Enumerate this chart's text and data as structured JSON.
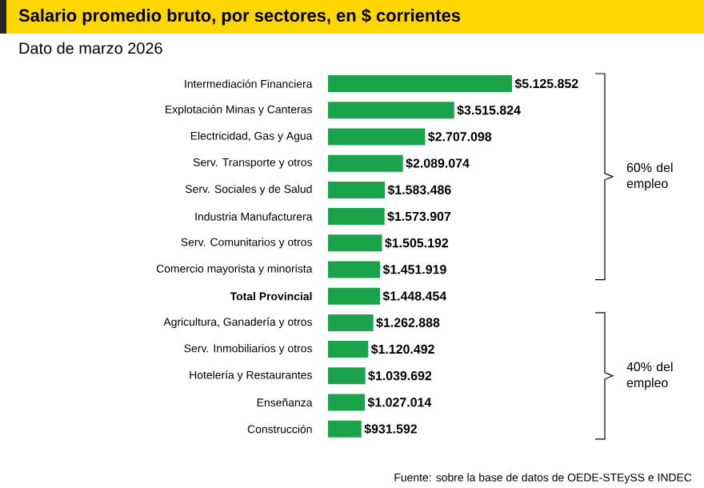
{
  "chart_data": {
    "type": "bar",
    "orientation": "horizontal",
    "title": "Salario promedio bruto, por sectores, en $ corrientes",
    "subtitle": "Dato de marzo 2026",
    "categories": [
      "Intermediación Financiera",
      "Explotación Minas y Canteras",
      "Electricidad, Gas y Agua",
      "Serv. Transporte y otros",
      "Serv. Sociales y de Salud",
      "Industria Manufacturera",
      "Serv. Comunitarios y otros",
      "Comercio mayorista y minorista",
      "**Total Provincial**",
      "Agricultura, Ganadería y otros",
      "Serv. Inmobiliarios y otros",
      "Hotelería y Restaurantes",
      "Enseñanza",
      "Construcción"
    ],
    "values": [
      5125852,
      3515824,
      2707098,
      2089074,
      1583486,
      1573907,
      1505192,
      1451919,
      1448454,
      1262888,
      1120492,
      1039692,
      1027014,
      931592
    ],
    "value_labels": [
      "$5.125.852",
      "$3.515.824",
      "$2.707.098",
      "$2.089.074",
      "$1.583.486",
      "$1.573.907",
      "$1.505.192",
      "$1.451.919",
      "$1.448.454",
      "$1.262.888",
      "$1.120.492",
      "$1.039.692",
      "$1.027.014",
      "$931.592"
    ],
    "color": "#1aa34a",
    "annotations": [
      "60% del empleo",
      "40% del empleo",
      "Fuente: sobre la base de datos de OEDE-STEySS e INDEC"
    ]
  }
}
